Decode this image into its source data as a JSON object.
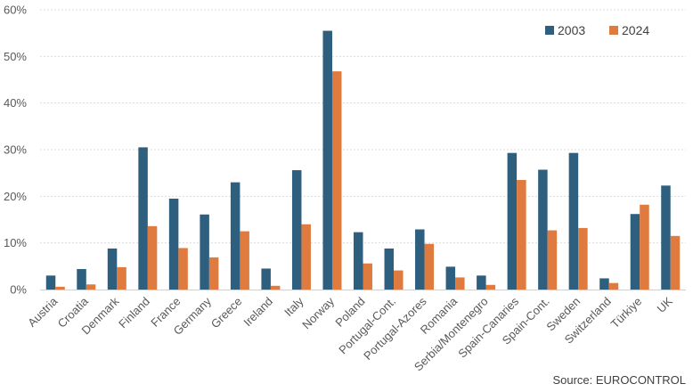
{
  "chart_data": {
    "type": "bar",
    "title": "",
    "xlabel": "",
    "ylabel": "",
    "ylim": [
      0,
      60
    ],
    "yticks": [
      "0%",
      "10%",
      "20%",
      "30%",
      "40%",
      "50%",
      "60%"
    ],
    "grid": true,
    "legend_position": "top-right",
    "categories": [
      "Austria",
      "Croatia",
      "Denmark",
      "Finland",
      "France",
      "Germany",
      "Greece",
      "Ireland",
      "Italy",
      "Norway",
      "Poland",
      "Portugal-Cont.",
      "Portugal-Azores",
      "Romania",
      "Serbia/Montenegro",
      "Spain-Canaries",
      "Spain-Cont.",
      "Sweden",
      "Switzerland",
      "Türkiye",
      "UK"
    ],
    "series": [
      {
        "name": "2003",
        "color": "#2e5f7f",
        "values": [
          3.0,
          4.4,
          8.8,
          30.5,
          19.5,
          16.1,
          23.0,
          4.5,
          25.6,
          55.5,
          12.3,
          8.8,
          12.9,
          4.9,
          3.0,
          29.3,
          25.7,
          29.3,
          2.4,
          16.2,
          22.3
        ]
      },
      {
        "name": "2024",
        "color": "#e07b40",
        "values": [
          0.6,
          1.1,
          4.8,
          13.6,
          8.9,
          6.9,
          12.5,
          0.8,
          14.0,
          46.8,
          5.6,
          4.1,
          9.8,
          2.6,
          1.0,
          23.5,
          12.7,
          13.2,
          1.4,
          18.2,
          11.5
        ]
      }
    ],
    "source": "Source: EUROCONTROL"
  }
}
